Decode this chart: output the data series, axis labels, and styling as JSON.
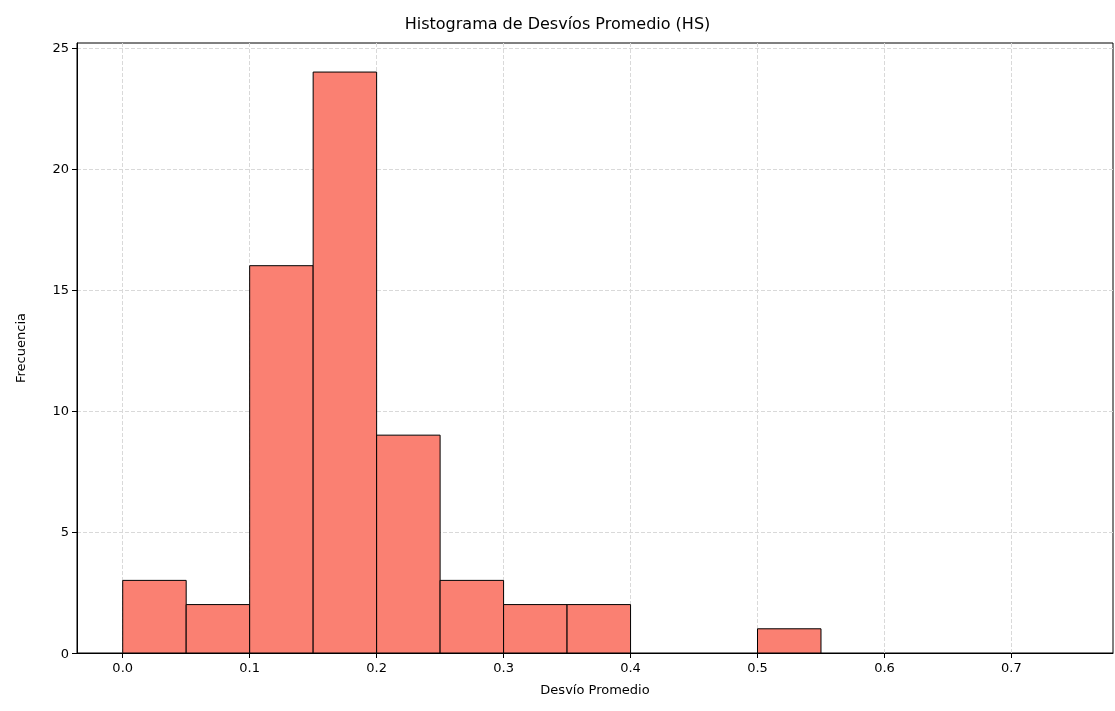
{
  "chart_data": {
    "type": "histogram",
    "title": "Histograma de Desvíos Promedio (HS)",
    "xlabel": "Desvío Promedio",
    "ylabel": "Frecuencia",
    "bins": [
      0.0,
      0.05,
      0.1,
      0.15,
      0.2,
      0.25,
      0.3,
      0.35,
      0.4,
      0.45,
      0.5,
      0.55
    ],
    "values": [
      3,
      2,
      16,
      24,
      9,
      3,
      2,
      2,
      0,
      0,
      1
    ],
    "color": "#fa8072",
    "xlim": [
      -0.036,
      0.78
    ],
    "xticks": [
      {
        "value": 0.0,
        "label": "0.0"
      },
      0.1,
      0.2,
      0.3,
      0.4,
      0.5,
      0.6,
      0.7
    ],
    "ylim": [
      0,
      25.2
    ],
    "yticks": [
      0,
      5,
      10,
      15,
      20,
      25
    ],
    "grid": true
  }
}
